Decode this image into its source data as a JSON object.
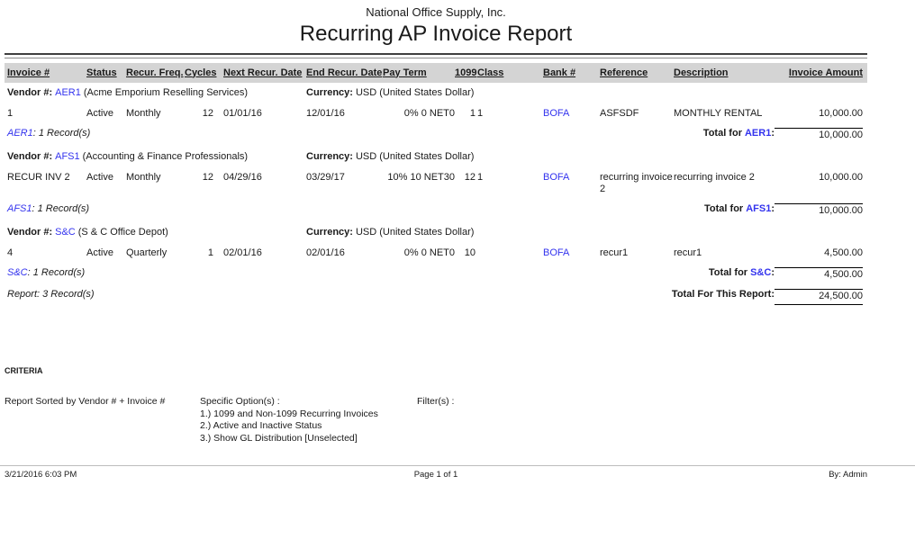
{
  "page": {
    "company": "National Office Supply, Inc.",
    "title": "Recurring AP Invoice Report"
  },
  "colors": {
    "link_blue": "#3333ee",
    "header_bar_gray": "#d4d4d4"
  },
  "table": {
    "headers": [
      "Invoice #",
      "Status",
      "Recur. Freq.",
      "Cycles",
      "Next Recur. Date",
      "End Recur. Date",
      "Pay Term",
      "1099",
      "Class",
      "Bank #",
      "Reference",
      "Description",
      "Invoice Amount"
    ],
    "vendor_label": "Vendor #:",
    "currency_label": "Currency:",
    "groups": [
      {
        "code": "AER1",
        "name": "(Acme Emporium Reselling Services)",
        "currency": "USD (United States Dollar)",
        "rows": [
          {
            "invoice": "1",
            "status": "Active",
            "freq": "Monthly",
            "cycles": "12",
            "next_date": "01/01/16",
            "end_date": "12/01/16",
            "pay_term": "0% 0 NET0",
            "t1099": "1",
            "class": "1",
            "bank": "BOFA",
            "reference": "ASFSDF",
            "description": "MONTHLY RENTAL",
            "amount": "10,000.00"
          }
        ],
        "record_suffix": ": 1 Record(s)",
        "total_label": "Total for",
        "total_colon": ":",
        "total_amount": "10,000.00"
      },
      {
        "code": "AFS1",
        "name": "(Accounting & Finance Professionals)",
        "currency": "USD (United States Dollar)",
        "rows": [
          {
            "invoice": "RECUR INV 2",
            "status": "Active",
            "freq": "Monthly",
            "cycles": "12",
            "next_date": "04/29/16",
            "end_date": "03/29/17",
            "pay_term": "10% 10 NET30",
            "t1099": "12",
            "class": "1",
            "bank": "BOFA",
            "reference": "recurring invoice 2",
            "description": "recurring invoice 2",
            "amount": "10,000.00"
          }
        ],
        "record_suffix": ": 1 Record(s)",
        "total_label": "Total for",
        "total_colon": ":",
        "total_amount": "10,000.00"
      },
      {
        "code": "S&C",
        "name": "(S & C Office Depot)",
        "currency": "USD (United States Dollar)",
        "rows": [
          {
            "invoice": "4",
            "status": "Active",
            "freq": "Quarterly",
            "cycles": "1",
            "next_date": "02/01/16",
            "end_date": "02/01/16",
            "pay_term": "0% 0 NET0",
            "t1099": "10",
            "class": "",
            "bank": "BOFA",
            "reference": "recur1",
            "description": "recur1",
            "amount": "4,500.00"
          }
        ],
        "record_suffix": ": 1 Record(s)",
        "total_label": "Total for",
        "total_colon": ":",
        "total_amount": "4,500.00"
      }
    ],
    "report_summary": {
      "record_text": "Report: 3 Record(s)",
      "total_label": "Total For This Report:",
      "total_amount": "24,500.00"
    }
  },
  "criteria": {
    "heading": "CRITERIA",
    "sorted_by": "Report Sorted by Vendor # + Invoice #",
    "specific_options_label": "Specific Option(s) :",
    "options": [
      "1.) 1099 and Non-1099 Recurring Invoices",
      "2.) Active and Inactive Status",
      "3.) Show GL Distribution [Unselected]"
    ],
    "filters_label": "Filter(s) :"
  },
  "footer": {
    "datetime": "3/21/2016 6:03 PM",
    "page": "Page 1 of 1",
    "by": "By: Admin"
  }
}
